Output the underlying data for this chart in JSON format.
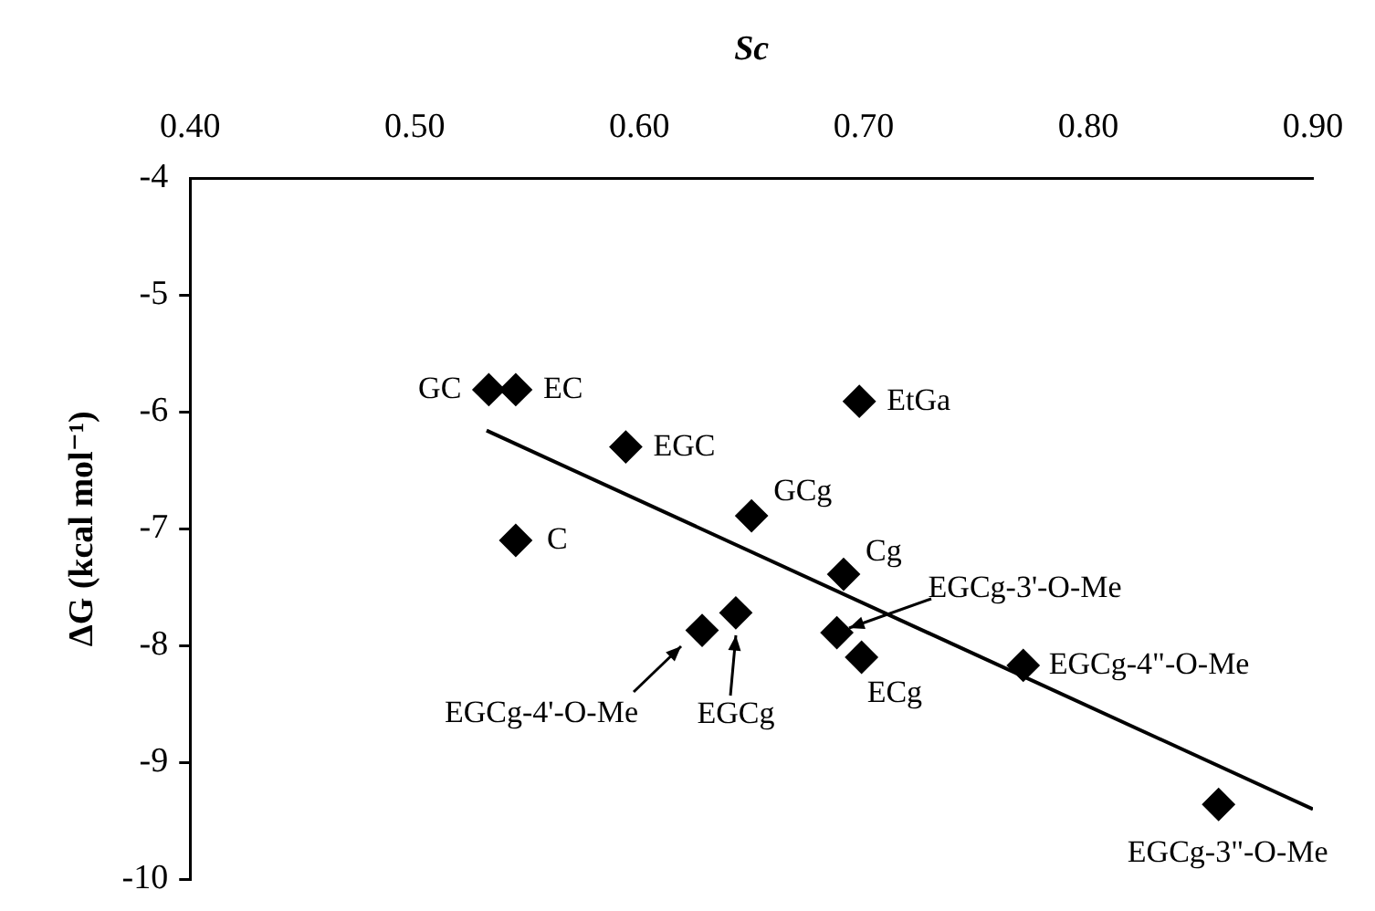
{
  "chart_data": {
    "type": "scatter",
    "xlabel": "Sc",
    "ylabel": "ΔG (kcal mol⁻¹)",
    "x": [
      0.533,
      0.545,
      0.698,
      0.594,
      0.65,
      0.545,
      0.691,
      0.628,
      0.643,
      0.688,
      0.699,
      0.771,
      0.858
    ],
    "series": [
      {
        "color": "#000000",
        "values": [
          -5.81,
          -5.81,
          -5.91,
          -6.3,
          -6.89,
          -7.1,
          -7.39,
          -7.87,
          -7.72,
          -7.89,
          -8.1,
          -8.17,
          -9.36
        ]
      },
      {
        "type": "line",
        "color": "#000000",
        "marker": "none",
        "x": [
          0.532,
          0.9
        ],
        "values": [
          -6.16,
          -9.4
        ]
      }
    ],
    "xlim": [
      0.4,
      0.9
    ],
    "xticks": [
      {
        "value": 0.4,
        "label": "0.40"
      },
      {
        "value": 0.5,
        "label": "0.50"
      },
      {
        "value": 0.6,
        "label": "0.60"
      },
      {
        "value": 0.7,
        "label": "0.70"
      },
      {
        "value": 0.8,
        "label": "0.80"
      },
      {
        "value": 0.9,
        "label": "0.90"
      }
    ],
    "ylim": [
      -10,
      -4
    ],
    "yticks": [
      -10,
      -9,
      -8,
      -7,
      -6,
      -5,
      -4
    ],
    "marker": "diamond",
    "grid": false,
    "legend": false,
    "annotations": [
      {
        "text": "GC",
        "x": 0.533,
        "y": -5.81
      },
      {
        "text": "EC",
        "x": 0.545,
        "y": -5.81
      },
      {
        "text": "EtGa",
        "x": 0.698,
        "y": -5.91
      },
      {
        "text": "EGC",
        "x": 0.594,
        "y": -6.3
      },
      {
        "text": "GCg",
        "x": 0.65,
        "y": -6.89
      },
      {
        "text": "C",
        "x": 0.545,
        "y": -7.1
      },
      {
        "text": "Cg",
        "x": 0.691,
        "y": -7.39
      },
      {
        "text": "EGCg-4'-O-Me",
        "x": 0.628,
        "y": -7.87
      },
      {
        "text": "EGCg",
        "x": 0.643,
        "y": -7.72
      },
      {
        "text": "EGCg-3'-O-Me",
        "x": 0.688,
        "y": -7.89
      },
      {
        "text": "ECg",
        "x": 0.699,
        "y": -8.1
      },
      {
        "text": "EGCg-4\"-O-Me",
        "x": 0.771,
        "y": -8.17
      },
      {
        "text": "EGCg-3\"-O-Me",
        "x": 0.858,
        "y": -9.36
      }
    ]
  }
}
